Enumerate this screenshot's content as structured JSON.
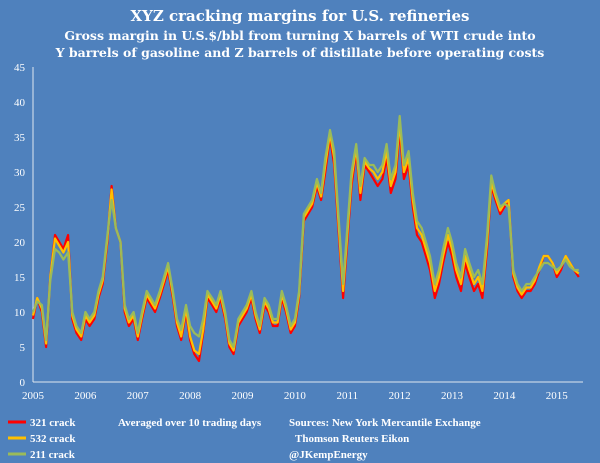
{
  "chart_data": {
    "type": "line",
    "title": "XYZ cracking margins for U.S. refineries",
    "subtitle_line1": "Gross margin in U.S.$/bbl from turning X barrels of WTI crude into",
    "subtitle_line2": "Y barrels of gasoline and Z barrels of distillate before operating costs",
    "xlabel": "",
    "ylabel": "",
    "xlim": [
      2005.0,
      2015.5
    ],
    "ylim": [
      0,
      45
    ],
    "x_ticks": [
      "2005",
      "2006",
      "2007",
      "2008",
      "2009",
      "2010",
      "2011",
      "2012",
      "2013",
      "2014",
      "2015"
    ],
    "y_ticks": [
      "0",
      "5",
      "10",
      "15",
      "20",
      "25",
      "30",
      "35",
      "40",
      "45"
    ],
    "grid": false,
    "legend_position": "bottom-left",
    "series": [
      {
        "name": "321 crack",
        "color": "#ff0000",
        "x": [
          2005.0,
          2005.08,
          2005.17,
          2005.25,
          2005.33,
          2005.42,
          2005.5,
          2005.58,
          2005.67,
          2005.75,
          2005.83,
          2005.92,
          2006.0,
          2006.08,
          2006.17,
          2006.25,
          2006.33,
          2006.42,
          2006.5,
          2006.58,
          2006.67,
          2006.75,
          2006.83,
          2006.92,
          2007.0,
          2007.08,
          2007.17,
          2007.25,
          2007.33,
          2007.42,
          2007.5,
          2007.58,
          2007.67,
          2007.75,
          2007.83,
          2007.92,
          2008.0,
          2008.08,
          2008.17,
          2008.25,
          2008.33,
          2008.42,
          2008.5,
          2008.58,
          2008.67,
          2008.75,
          2008.83,
          2008.92,
          2009.0,
          2009.08,
          2009.17,
          2009.25,
          2009.33,
          2009.42,
          2009.5,
          2009.58,
          2009.67,
          2009.75,
          2009.83,
          2009.92,
          2010.0,
          2010.08,
          2010.17,
          2010.25,
          2010.33,
          2010.42,
          2010.5,
          2010.58,
          2010.67,
          2010.75,
          2010.83,
          2010.92,
          2011.0,
          2011.08,
          2011.17,
          2011.25,
          2011.33,
          2011.42,
          2011.5,
          2011.58,
          2011.67,
          2011.75,
          2011.83,
          2011.92,
          2012.0,
          2012.08,
          2012.17,
          2012.25,
          2012.33,
          2012.42,
          2012.5,
          2012.58,
          2012.67,
          2012.75,
          2012.83,
          2012.92,
          2013.0,
          2013.08,
          2013.17,
          2013.25,
          2013.33,
          2013.42,
          2013.5,
          2013.58,
          2013.67,
          2013.75,
          2013.83,
          2013.92,
          2014.0,
          2014.08,
          2014.17,
          2014.25,
          2014.33,
          2014.42,
          2014.5,
          2014.58,
          2014.67,
          2014.75,
          2014.83,
          2014.92,
          2015.0,
          2015.08,
          2015.17,
          2015.25,
          2015.33,
          2015.42
        ],
        "values": [
          9,
          12,
          10,
          5,
          15,
          21,
          20,
          19,
          21,
          9,
          7,
          6,
          9,
          8,
          9,
          12,
          14,
          20,
          28,
          22,
          20,
          10,
          8,
          9,
          6,
          9,
          12,
          11,
          10,
          12,
          14,
          16,
          12,
          8,
          6,
          10,
          6,
          4,
          3,
          7,
          12,
          11,
          10,
          12,
          9,
          5,
          4,
          8,
          9,
          10,
          12,
          9,
          7,
          11,
          10,
          8,
          8,
          12,
          10,
          7,
          8,
          12,
          23,
          24,
          25,
          28,
          26,
          30,
          35,
          31,
          22,
          12,
          20,
          28,
          33,
          26,
          31,
          30,
          29,
          28,
          29,
          32,
          27,
          29,
          36,
          29,
          31,
          25,
          21,
          20,
          18,
          16,
          12,
          14,
          17,
          20,
          18,
          15,
          13,
          17,
          15,
          13,
          14,
          12,
          19,
          28,
          26,
          24,
          25,
          26,
          15,
          13,
          12,
          13,
          13,
          14,
          16,
          18,
          18,
          17,
          15,
          16,
          18,
          17,
          16,
          15
        ]
      },
      {
        "name": "532 crack",
        "color": "#ffc000",
        "x": [
          2005.0,
          2005.08,
          2005.17,
          2005.25,
          2005.33,
          2005.42,
          2005.5,
          2005.58,
          2005.67,
          2005.75,
          2005.83,
          2005.92,
          2006.0,
          2006.08,
          2006.17,
          2006.25,
          2006.33,
          2006.42,
          2006.5,
          2006.58,
          2006.67,
          2006.75,
          2006.83,
          2006.92,
          2007.0,
          2007.08,
          2007.17,
          2007.25,
          2007.33,
          2007.42,
          2007.5,
          2007.58,
          2007.67,
          2007.75,
          2007.83,
          2007.92,
          2008.0,
          2008.08,
          2008.17,
          2008.25,
          2008.33,
          2008.42,
          2008.5,
          2008.58,
          2008.67,
          2008.75,
          2008.83,
          2008.92,
          2009.0,
          2009.08,
          2009.17,
          2009.25,
          2009.33,
          2009.42,
          2009.5,
          2009.58,
          2009.67,
          2009.75,
          2009.83,
          2009.92,
          2010.0,
          2010.08,
          2010.17,
          2010.25,
          2010.33,
          2010.42,
          2010.5,
          2010.58,
          2010.67,
          2010.75,
          2010.83,
          2010.92,
          2011.0,
          2011.08,
          2011.17,
          2011.25,
          2011.33,
          2011.42,
          2011.5,
          2011.58,
          2011.67,
          2011.75,
          2011.83,
          2011.92,
          2012.0,
          2012.08,
          2012.17,
          2012.25,
          2012.33,
          2012.42,
          2012.5,
          2012.58,
          2012.67,
          2012.75,
          2012.83,
          2012.92,
          2013.0,
          2013.08,
          2013.17,
          2013.25,
          2013.33,
          2013.42,
          2013.5,
          2013.58,
          2013.67,
          2013.75,
          2013.83,
          2013.92,
          2014.0,
          2014.08,
          2014.17,
          2014.25,
          2014.33,
          2014.42,
          2014.5,
          2014.58,
          2014.67,
          2014.75,
          2014.83,
          2014.92,
          2015.0,
          2015.08,
          2015.17,
          2015.25,
          2015.33,
          2015.42
        ],
        "values": [
          9.5,
          12,
          10.5,
          5.5,
          15,
          20.5,
          19.5,
          18.5,
          20,
          9.5,
          7.5,
          6.5,
          9.5,
          8.5,
          9.5,
          12.5,
          14.5,
          20.5,
          27.5,
          22,
          20,
          10.5,
          8.5,
          9.5,
          6.5,
          9.5,
          12.5,
          11.5,
          10.5,
          12.5,
          14.5,
          16.5,
          12.5,
          8.5,
          6.5,
          10.5,
          6.5,
          4.5,
          4,
          7.5,
          12.5,
          11.5,
          10.5,
          12.5,
          9.5,
          5.5,
          4.5,
          8.5,
          9.5,
          10.5,
          12.5,
          9.5,
          7.5,
          11.5,
          10.5,
          8.5,
          8.5,
          12.5,
          10.5,
          7.5,
          8.5,
          12.5,
          23.5,
          24.5,
          25.5,
          28.5,
          26.5,
          31,
          35.5,
          32,
          23,
          13,
          21,
          29,
          33.5,
          27,
          31.5,
          30.5,
          30,
          29,
          30,
          33,
          28,
          30,
          37,
          30,
          32,
          26,
          22,
          21,
          19,
          17,
          13,
          15,
          18,
          21,
          19,
          16,
          14,
          18,
          16,
          14,
          15,
          13,
          20,
          28.5,
          26.5,
          24.5,
          25.5,
          26,
          15.5,
          13.5,
          12.5,
          13.5,
          13.5,
          14.5,
          16.5,
          18,
          18,
          17,
          15.5,
          16.5,
          18,
          17,
          16,
          15.5
        ]
      },
      {
        "name": "211 crack",
        "color": "#9bbb59",
        "x": [
          2005.0,
          2005.08,
          2005.17,
          2005.25,
          2005.33,
          2005.42,
          2005.5,
          2005.58,
          2005.67,
          2005.75,
          2005.83,
          2005.92,
          2006.0,
          2006.08,
          2006.17,
          2006.25,
          2006.33,
          2006.42,
          2006.5,
          2006.58,
          2006.67,
          2006.75,
          2006.83,
          2006.92,
          2007.0,
          2007.08,
          2007.17,
          2007.25,
          2007.33,
          2007.42,
          2007.5,
          2007.58,
          2007.67,
          2007.75,
          2007.83,
          2007.92,
          2008.0,
          2008.08,
          2008.17,
          2008.25,
          2008.33,
          2008.42,
          2008.5,
          2008.58,
          2008.67,
          2008.75,
          2008.83,
          2008.92,
          2009.0,
          2009.08,
          2009.17,
          2009.25,
          2009.33,
          2009.42,
          2009.5,
          2009.58,
          2009.67,
          2009.75,
          2009.83,
          2009.92,
          2010.0,
          2010.08,
          2010.17,
          2010.25,
          2010.33,
          2010.42,
          2010.5,
          2010.58,
          2010.67,
          2010.75,
          2010.83,
          2010.92,
          2011.0,
          2011.08,
          2011.17,
          2011.25,
          2011.33,
          2011.42,
          2011.5,
          2011.58,
          2011.67,
          2011.75,
          2011.83,
          2011.92,
          2012.0,
          2012.08,
          2012.17,
          2012.25,
          2012.33,
          2012.42,
          2012.5,
          2012.58,
          2012.67,
          2012.75,
          2012.83,
          2012.92,
          2013.0,
          2013.08,
          2013.17,
          2013.25,
          2013.33,
          2013.42,
          2013.5,
          2013.58,
          2013.67,
          2013.75,
          2013.83,
          2013.92,
          2014.0,
          2014.08,
          2014.17,
          2014.25,
          2014.33,
          2014.42,
          2014.5,
          2014.58,
          2014.67,
          2014.75,
          2014.83,
          2014.92,
          2015.0,
          2015.08,
          2015.17,
          2015.25,
          2015.33,
          2015.42
        ],
        "values": [
          10,
          11.5,
          11,
          6,
          14.5,
          19,
          18.5,
          17.5,
          18.5,
          10,
          8,
          7,
          10,
          9,
          10,
          13,
          15,
          21,
          26,
          22,
          20,
          11,
          9,
          10,
          7,
          10,
          13,
          12,
          11,
          13,
          15,
          17,
          13,
          9,
          7.5,
          11,
          8,
          7,
          6.5,
          9,
          13,
          12,
          11,
          13,
          10,
          6,
          5,
          9,
          10,
          11,
          13,
          10,
          8,
          12,
          11,
          9,
          9,
          13,
          11,
          8,
          9,
          13,
          24,
          25,
          26,
          29,
          27,
          32,
          36,
          33,
          24,
          14,
          22,
          30,
          34,
          28,
          32,
          31,
          31,
          30,
          31,
          34,
          29,
          31,
          38,
          31,
          33,
          27,
          23,
          22,
          20,
          18,
          14,
          16,
          19,
          22,
          20,
          17,
          15,
          19,
          17,
          15,
          16,
          14,
          21,
          29.5,
          27,
          25,
          25.5,
          25,
          16,
          14,
          13,
          14,
          14,
          15,
          16,
          17,
          17,
          16.5,
          16,
          16.5,
          17.5,
          16.5,
          16,
          16
        ]
      }
    ],
    "annotations": [
      "Averaged over 10 trading days",
      "Sources: New York Mercantile Exchange",
      "Thomson Reuters Eikon",
      "@JKempEnergy"
    ]
  }
}
